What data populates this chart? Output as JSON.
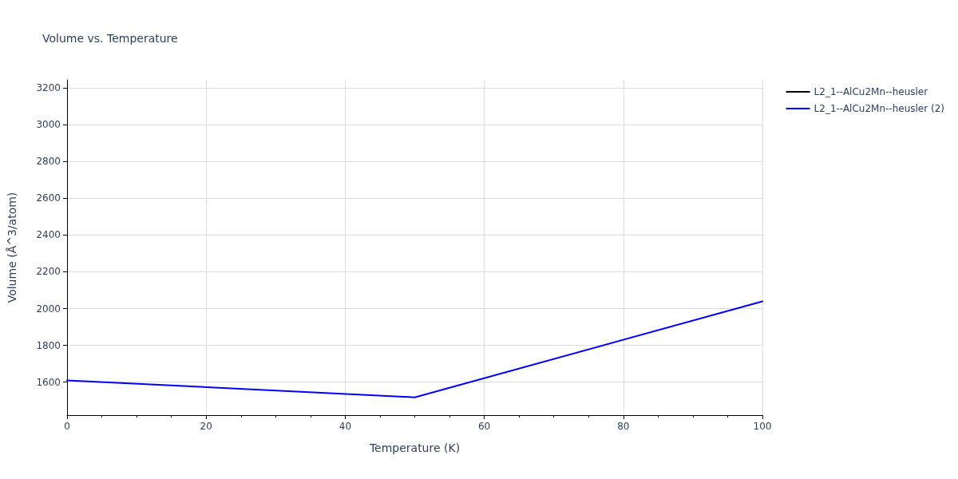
{
  "chart_data": {
    "type": "line",
    "title": "Volume vs. Temperature",
    "xlabel": "Temperature (K)",
    "ylabel": "Volume (Å^3/atom)",
    "x": [
      0,
      50,
      100
    ],
    "series": [
      {
        "name": "L2_1--AlCu2Mn--heusler",
        "color": "#000000",
        "values": [
          null,
          null,
          null
        ]
      },
      {
        "name": "L2_1--AlCu2Mn--heusler (2)",
        "color": "#0000ff",
        "values": [
          1609,
          1517,
          2039
        ]
      }
    ],
    "xlim": [
      0,
      100
    ],
    "xticks": [
      0,
      20,
      40,
      60,
      80,
      100
    ],
    "ylim": [
      1420,
      3245
    ],
    "yticks": [
      1600,
      1800,
      2000,
      2200,
      2400,
      2600,
      2800,
      3000,
      3200
    ],
    "grid": true,
    "legend": "top right",
    "marker": "none",
    "line_style": "solid"
  }
}
